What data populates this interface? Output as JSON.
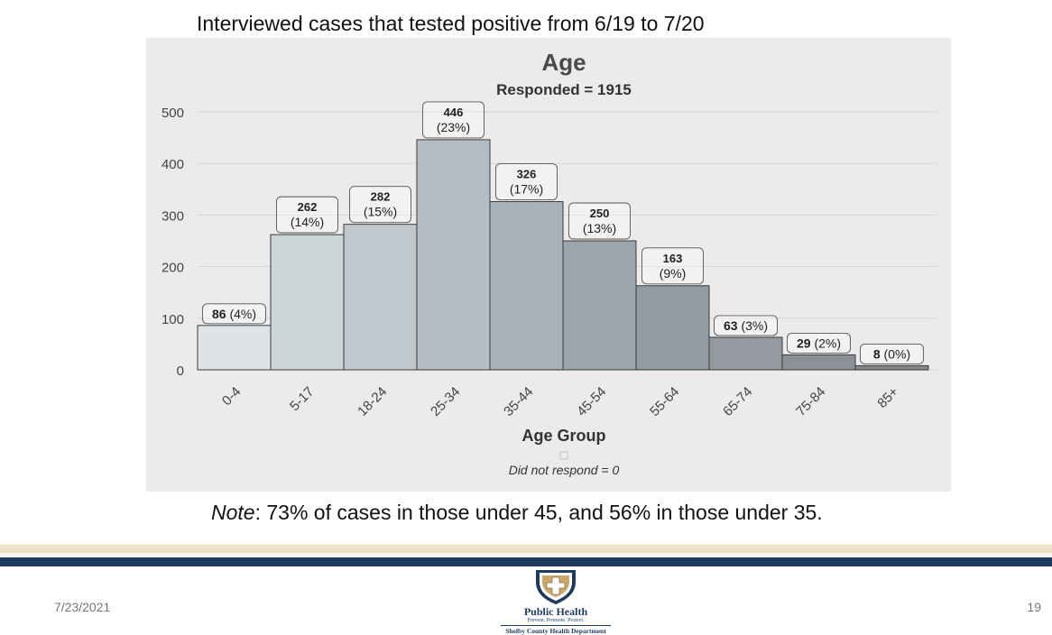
{
  "slide": {
    "heading": "Interviewed cases that tested positive from 6/19 to 7/20",
    "note_label": "Note",
    "note_text": ": 73% of cases in those under 45, and 56% in those under 35.",
    "date": "7/23/2021",
    "page_number": "19"
  },
  "logo": {
    "title": "Public Health",
    "tagline": "Prevent. Promote. Protect.",
    "department": "Shelby County Health Department"
  },
  "chart_data": {
    "type": "bar",
    "title": "Age",
    "subtitle": "Responded = 1915",
    "xlabel": "Age Group",
    "ylabel": "",
    "footnote": "Did not respond = 0",
    "categories": [
      "0-4",
      "5-17",
      "18-24",
      "25-34",
      "35-44",
      "45-54",
      "55-64",
      "65-74",
      "75-84",
      "85+"
    ],
    "values": [
      86,
      262,
      282,
      446,
      326,
      250,
      163,
      63,
      29,
      8
    ],
    "percent_labels": [
      "(4%)",
      "(14%)",
      "(15%)",
      "(23%)",
      "(17%)",
      "(13%)",
      "(9%)",
      "(3%)",
      "(2%)",
      "(0%)"
    ],
    "label_layout": [
      "inline",
      "stacked",
      "stacked",
      "stacked",
      "stacked",
      "stacked",
      "stacked",
      "inline",
      "inline",
      "inline"
    ],
    "bar_colors": [
      "#dfe3e6",
      "#ced5d9",
      "#c0c8cd",
      "#b4bdc3",
      "#a7b1b7",
      "#9ba6ac",
      "#909ba2",
      "#949a9f",
      "#8b9196",
      "#82888d"
    ],
    "ylim": [
      0,
      500
    ],
    "yticks": [
      0,
      100,
      200,
      300,
      400,
      500
    ],
    "grid": true,
    "legend": "none"
  }
}
